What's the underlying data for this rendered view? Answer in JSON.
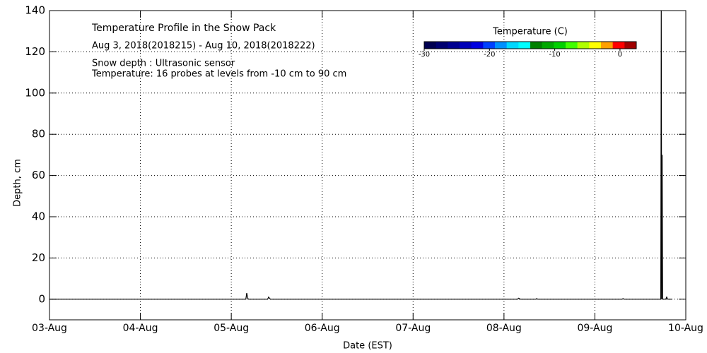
{
  "chart_data": {
    "type": "line",
    "title": "Temperature Profile in the Snow Pack",
    "subtitle": "Aug  3, 2018(2018215) - Aug 10, 2018(2018222)",
    "annotations": [
      "Snow depth : Ultrasonic sensor",
      "Temperature: 16 probes at levels from -10 cm to 90 cm"
    ],
    "x_label": "Date (EST)",
    "y_label": "Depth, cm",
    "xlim": [
      3,
      10
    ],
    "xticks": [
      {
        "value": 3,
        "label": "03-Aug"
      },
      {
        "value": 4,
        "label": "04-Aug"
      },
      {
        "value": 5,
        "label": "05-Aug"
      },
      {
        "value": 6,
        "label": "06-Aug"
      },
      {
        "value": 7,
        "label": "07-Aug"
      },
      {
        "value": 8,
        "label": "08-Aug"
      },
      {
        "value": 9,
        "label": "09-Aug"
      },
      {
        "value": 10,
        "label": "10-Aug"
      }
    ],
    "ylim": [
      -10,
      140
    ],
    "yticks": [
      0,
      20,
      40,
      60,
      80,
      100,
      120,
      140
    ],
    "grid": true,
    "series": [
      {
        "color": "#000000",
        "x": [
          3,
          5.16,
          5.17,
          5.18,
          5.19,
          5.4,
          5.41,
          5.43,
          8.15,
          8.16,
          8.18,
          8.35,
          8.36,
          8.37,
          9.3,
          9.31,
          9.32,
          9.725,
          9.73,
          9.735,
          9.74,
          9.745,
          9.78,
          9.79,
          9.8,
          9.85
        ],
        "values": [
          0,
          0,
          3,
          0.5,
          0,
          0,
          1,
          0,
          0,
          0.5,
          0,
          0,
          0.3,
          0,
          0,
          0.3,
          0,
          0,
          140,
          0,
          70,
          0,
          0,
          1,
          0,
          0
        ]
      }
    ],
    "colorbar": {
      "title": "Temperature (C)",
      "lim": [
        -30,
        2.5
      ],
      "ticks": [
        -30,
        -20,
        -10,
        0
      ],
      "colors": [
        "#000050",
        "#000070",
        "#000090",
        "#0000b8",
        "#0000e0",
        "#0040ff",
        "#0090ff",
        "#00d8ff",
        "#00ffff",
        "#008000",
        "#00a800",
        "#00d000",
        "#40ff00",
        "#b0ff00",
        "#ffff00",
        "#ffa000",
        "#ff0000",
        "#a00000"
      ]
    }
  }
}
